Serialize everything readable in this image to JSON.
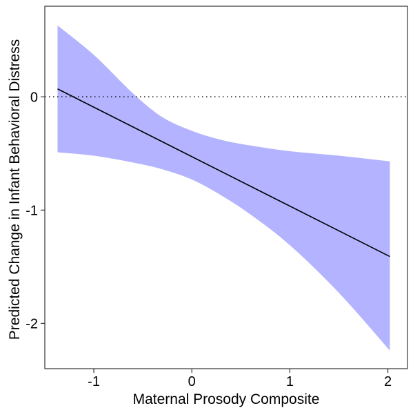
{
  "chart_data": {
    "type": "line",
    "title": "",
    "xlabel": "Maternal Prosody Composite",
    "ylabel": "Predicted Change in Infant Behavioral Distress",
    "xlim": [
      -1.5,
      2.2
    ],
    "ylim": [
      -2.4,
      0.8
    ],
    "x_ticks": [
      -1,
      0,
      1,
      2
    ],
    "x_tick_labels": [
      "-1",
      "0",
      "1",
      "2"
    ],
    "y_ticks": [
      -2,
      -1,
      0
    ],
    "y_tick_labels": [
      "-2",
      "-1",
      "0"
    ],
    "reference_line": {
      "y": 0,
      "style": "dotted"
    },
    "grid": false,
    "legend": "none",
    "series": [
      {
        "type": "line",
        "x": [
          -1.37,
          2.02
        ],
        "y": [
          0.07,
          -1.41
        ]
      }
    ],
    "confidence_band": {
      "x": [
        -1.37,
        -1.0,
        -0.6,
        -0.3,
        0.0,
        0.3,
        0.6,
        1.0,
        1.5,
        2.02
      ],
      "upper": [
        0.63,
        0.37,
        0.03,
        -0.18,
        -0.3,
        -0.38,
        -0.43,
        -0.48,
        -0.52,
        -0.57
      ],
      "lower": [
        -0.49,
        -0.52,
        -0.58,
        -0.64,
        -0.73,
        -0.87,
        -1.04,
        -1.31,
        -1.73,
        -2.24
      ]
    },
    "colors": {
      "band": "#b3b3ff",
      "line": "#000000",
      "reference": "#000000",
      "frame": "#333333"
    }
  }
}
